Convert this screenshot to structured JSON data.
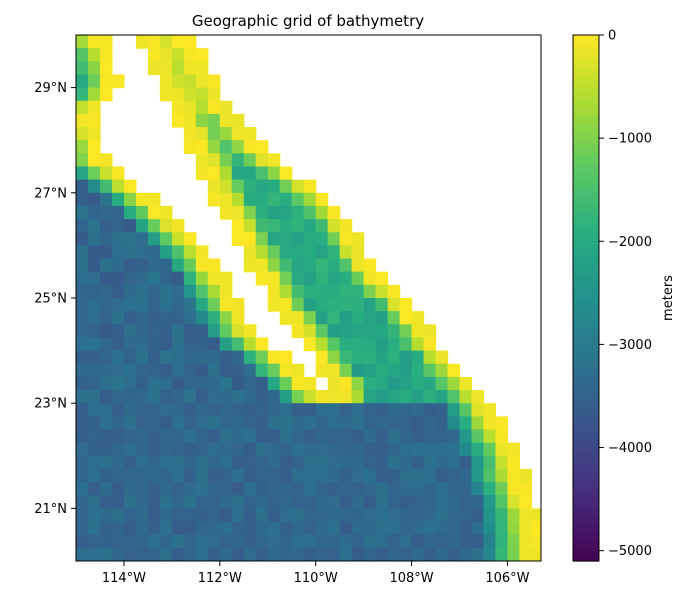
{
  "chart_data": {
    "type": "heatmap",
    "title": "Geographic grid of bathymetry",
    "xlabel": "",
    "ylabel": "",
    "x_range_deg": [
      -115.0,
      -105.3
    ],
    "y_range_deg": [
      20.0,
      30.0
    ],
    "grid": false,
    "x_ticks": [
      {
        "value": -114,
        "label": "114°W"
      },
      {
        "value": -112,
        "label": "112°W"
      },
      {
        "value": -110,
        "label": "110°W"
      },
      {
        "value": -108,
        "label": "108°W"
      },
      {
        "value": -106,
        "label": "106°W"
      }
    ],
    "y_ticks": [
      {
        "value": 29,
        "label": "29°N"
      },
      {
        "value": 27,
        "label": "27°N"
      },
      {
        "value": 25,
        "label": "25°N"
      },
      {
        "value": 23,
        "label": "23°N"
      },
      {
        "value": 21,
        "label": "21°N"
      }
    ],
    "colorbar": {
      "label": "meters",
      "colormap": "viridis",
      "range": [
        -5100,
        0
      ],
      "ticks": [
        {
          "value": 0,
          "label": "0"
        },
        {
          "value": -1000,
          "label": "−1000"
        },
        {
          "value": -2000,
          "label": "−2000"
        },
        {
          "value": -3000,
          "label": "−3000"
        },
        {
          "value": -4000,
          "label": "−4000"
        },
        {
          "value": -5000,
          "label": "−5000"
        }
      ]
    },
    "color_stops": [
      "#440154",
      "#472d7b",
      "#3b528b",
      "#2c728e",
      "#21918c",
      "#28ae80",
      "#5ec962",
      "#addc30",
      "#fde725"
    ],
    "features": {
      "land_color": "#ffffff",
      "depth_shallow": 0,
      "depth_deep_ocean": -3400,
      "depth_gulf_trough": -1900
    }
  }
}
